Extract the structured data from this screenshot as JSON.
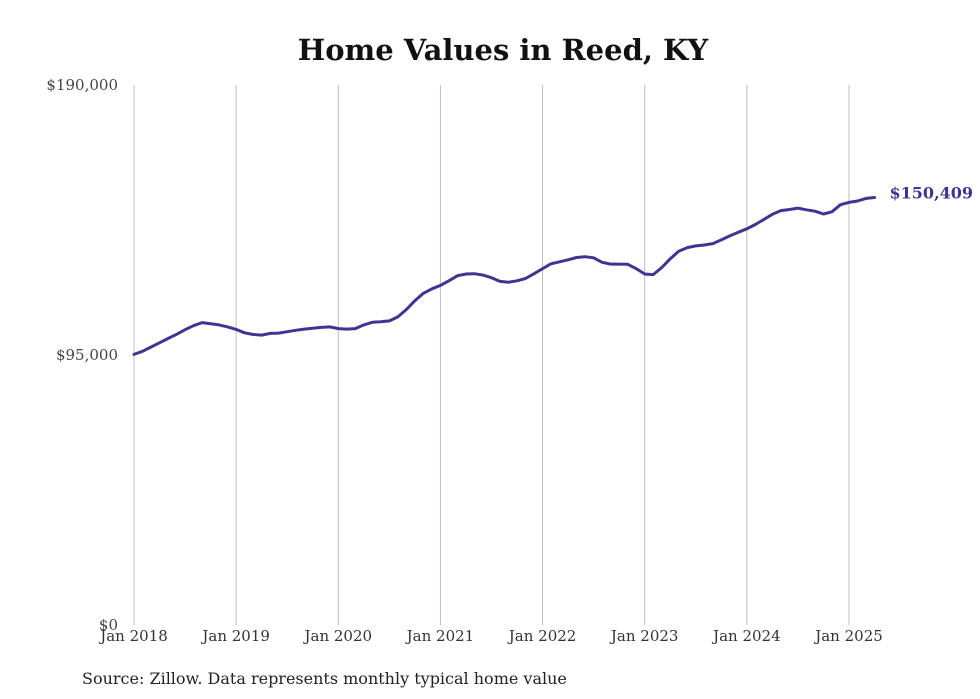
{
  "chart_data": {
    "type": "line",
    "title": "Home Values in Reed, KY",
    "source": "Source: Zillow. Data represents monthly typical home value",
    "xlabel": "",
    "ylabel": "",
    "ylim": [
      0,
      190000
    ],
    "y_ticks": [
      {
        "value": 0,
        "label": "$0"
      },
      {
        "value": 95000,
        "label": "$95,000"
      },
      {
        "value": 190000,
        "label": "$190,000"
      }
    ],
    "x_ticks": [
      {
        "value": 2018,
        "label": "Jan 2018"
      },
      {
        "value": 2019,
        "label": "Jan 2019"
      },
      {
        "value": 2020,
        "label": "Jan 2020"
      },
      {
        "value": 2021,
        "label": "Jan 2021"
      },
      {
        "value": 2022,
        "label": "Jan 2022"
      },
      {
        "value": 2023,
        "label": "Jan 2023"
      },
      {
        "value": 2024,
        "label": "Jan 2024"
      },
      {
        "value": 2025,
        "label": "Jan 2025"
      }
    ],
    "grid": "vertical",
    "line_color": "#3d3591",
    "end_label": "$150,409",
    "series": [
      {
        "x": [
          2018.0,
          2018.083,
          2018.167,
          2018.25,
          2018.333,
          2018.417,
          2018.5,
          2018.583,
          2018.667,
          2018.75,
          2018.833,
          2018.917,
          2019.0,
          2019.083,
          2019.167,
          2019.25,
          2019.333,
          2019.417,
          2019.5,
          2019.583,
          2019.667,
          2019.75,
          2019.833,
          2019.917,
          2020.0,
          2020.083,
          2020.167,
          2020.25,
          2020.333,
          2020.417,
          2020.5,
          2020.583,
          2020.667,
          2020.75,
          2020.833,
          2020.917,
          2021.0,
          2021.083,
          2021.167,
          2021.25,
          2021.333,
          2021.417,
          2021.5,
          2021.583,
          2021.667,
          2021.75,
          2021.833,
          2021.917,
          2022.0,
          2022.083,
          2022.167,
          2022.25,
          2022.333,
          2022.417,
          2022.5,
          2022.583,
          2022.667,
          2022.75,
          2022.833,
          2022.917,
          2023.0,
          2023.083,
          2023.167,
          2023.25,
          2023.333,
          2023.417,
          2023.5,
          2023.583,
          2023.667,
          2023.75,
          2023.833,
          2023.917,
          2024.0,
          2024.083,
          2024.167,
          2024.25,
          2024.333,
          2024.417,
          2024.5,
          2024.583,
          2024.667,
          2024.75,
          2024.833,
          2024.917,
          2025.0,
          2025.083,
          2025.167,
          2025.25
        ],
        "values": [
          95200,
          96300,
          97800,
          99300,
          100800,
          102300,
          103900,
          105300,
          106400,
          106000,
          105600,
          104900,
          104000,
          102800,
          102200,
          102000,
          102600,
          102700,
          103200,
          103700,
          104100,
          104400,
          104700,
          104900,
          104300,
          104100,
          104300,
          105600,
          106500,
          106700,
          107000,
          108400,
          111000,
          114100,
          116700,
          118300,
          119500,
          121100,
          122900,
          123500,
          123600,
          123100,
          122200,
          120900,
          120600,
          121100,
          121900,
          123600,
          125400,
          127100,
          127800,
          128500,
          129300,
          129600,
          129200,
          127600,
          127000,
          127000,
          126900,
          125400,
          123500,
          123300,
          125800,
          128900,
          131500,
          132800,
          133400,
          133700,
          134200,
          135500,
          136900,
          138200,
          139400,
          140900,
          142700,
          144500,
          145800,
          146200,
          146700,
          146100,
          145600,
          144600,
          145400,
          147900,
          148700,
          149200,
          150100,
          150409
        ]
      }
    ]
  }
}
